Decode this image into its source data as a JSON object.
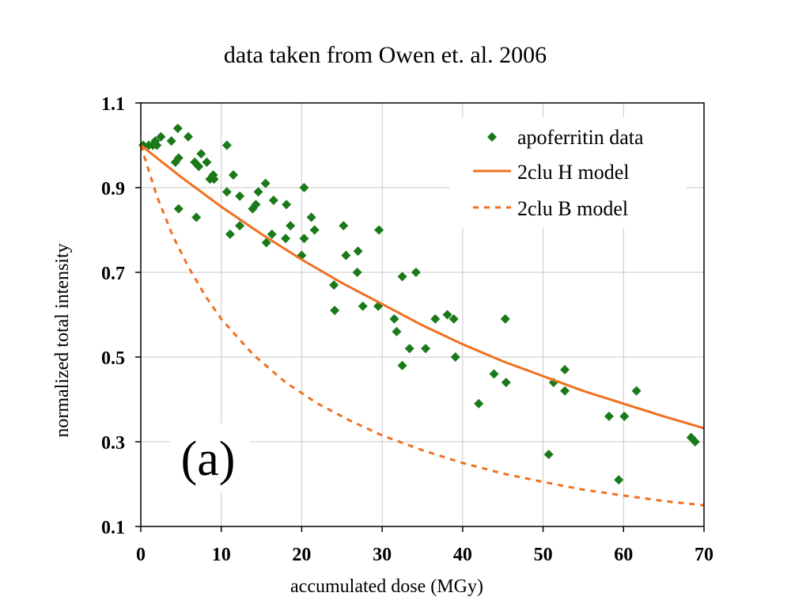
{
  "chart_data": {
    "type": "scatter",
    "title": "data taken from Owen et. al. 2006",
    "xlabel": "accumulated dose (MGy)",
    "ylabel": "normalized total intensity",
    "xlim": [
      0,
      70
    ],
    "ylim": [
      0.1,
      1.1
    ],
    "xticks": [
      0,
      10,
      20,
      30,
      40,
      50,
      60,
      70
    ],
    "yticks": [
      0.1,
      0.3,
      0.5,
      0.7,
      0.9,
      1.1
    ],
    "xtick_labels": [
      "0",
      "10",
      "20",
      "30",
      "40",
      "50",
      "60",
      "70"
    ],
    "ytick_labels": [
      "0.1",
      "0.3",
      "0.5",
      "0.7",
      "0.9",
      "1.1"
    ],
    "grid": true,
    "legend_position": "top-right",
    "annotation": "(a)",
    "colors": {
      "data": "#1a7a1a",
      "model": "#f07020"
    },
    "series": [
      {
        "name": "apoferritin data",
        "kind": "points",
        "marker": "diamond",
        "points": [
          [
            0.3,
            1.0
          ],
          [
            1.0,
            1.0
          ],
          [
            1.5,
            1.0
          ],
          [
            1.8,
            1.01
          ],
          [
            2.0,
            1.0
          ],
          [
            2.5,
            1.02
          ],
          [
            3.8,
            1.01
          ],
          [
            4.3,
            0.96
          ],
          [
            4.6,
            1.04
          ],
          [
            4.7,
            0.97
          ],
          [
            4.7,
            0.85
          ],
          [
            5.9,
            1.02
          ],
          [
            6.7,
            0.96
          ],
          [
            6.9,
            0.83
          ],
          [
            7.2,
            0.95
          ],
          [
            7.5,
            0.98
          ],
          [
            8.2,
            0.96
          ],
          [
            8.6,
            0.92
          ],
          [
            9.0,
            0.93
          ],
          [
            9.1,
            0.92
          ],
          [
            10.7,
            1.0
          ],
          [
            10.7,
            0.89
          ],
          [
            11.1,
            0.79
          ],
          [
            11.5,
            0.93
          ],
          [
            12.3,
            0.88
          ],
          [
            12.3,
            0.81
          ],
          [
            13.9,
            0.85
          ],
          [
            14.3,
            0.86
          ],
          [
            14.6,
            0.89
          ],
          [
            15.5,
            0.91
          ],
          [
            15.6,
            0.77
          ],
          [
            16.3,
            0.79
          ],
          [
            16.5,
            0.87
          ],
          [
            18.0,
            0.78
          ],
          [
            18.1,
            0.86
          ],
          [
            18.6,
            0.81
          ],
          [
            20.0,
            0.74
          ],
          [
            20.3,
            0.9
          ],
          [
            20.3,
            0.78
          ],
          [
            21.2,
            0.83
          ],
          [
            21.6,
            0.8
          ],
          [
            24.0,
            0.67
          ],
          [
            24.1,
            0.61
          ],
          [
            25.2,
            0.81
          ],
          [
            25.5,
            0.74
          ],
          [
            26.9,
            0.7
          ],
          [
            27.0,
            0.75
          ],
          [
            27.6,
            0.62
          ],
          [
            29.5,
            0.62
          ],
          [
            29.6,
            0.8
          ],
          [
            31.5,
            0.59
          ],
          [
            31.8,
            0.56
          ],
          [
            32.5,
            0.48
          ],
          [
            32.5,
            0.69
          ],
          [
            33.4,
            0.52
          ],
          [
            34.2,
            0.7
          ],
          [
            35.4,
            0.52
          ],
          [
            36.6,
            0.59
          ],
          [
            38.1,
            0.6
          ],
          [
            38.9,
            0.59
          ],
          [
            39.1,
            0.5
          ],
          [
            42.0,
            0.39
          ],
          [
            43.9,
            0.46
          ],
          [
            45.3,
            0.59
          ],
          [
            45.4,
            0.44
          ],
          [
            50.7,
            0.27
          ],
          [
            51.3,
            0.44
          ],
          [
            52.7,
            0.47
          ],
          [
            52.7,
            0.42
          ],
          [
            58.2,
            0.36
          ],
          [
            59.4,
            0.21
          ],
          [
            60.1,
            0.36
          ],
          [
            61.6,
            0.42
          ],
          [
            68.4,
            0.31
          ],
          [
            68.9,
            0.3
          ]
        ]
      },
      {
        "name": "2clu H model",
        "kind": "line",
        "dash": "solid",
        "points": [
          [
            0,
            1.0
          ],
          [
            5,
            0.925
          ],
          [
            10,
            0.855
          ],
          [
            15,
            0.79
          ],
          [
            20,
            0.73
          ],
          [
            25,
            0.675
          ],
          [
            30,
            0.625
          ],
          [
            35,
            0.575
          ],
          [
            40,
            0.53
          ],
          [
            45,
            0.49
          ],
          [
            50,
            0.455
          ],
          [
            55,
            0.42
          ],
          [
            60,
            0.39
          ],
          [
            65,
            0.36
          ],
          [
            70,
            0.332
          ]
        ]
      },
      {
        "name": "2clu B model",
        "kind": "line",
        "dash": "dashed",
        "points": [
          [
            0,
            1.0
          ],
          [
            2,
            0.88
          ],
          [
            4,
            0.785
          ],
          [
            6,
            0.71
          ],
          [
            8,
            0.645
          ],
          [
            10,
            0.59
          ],
          [
            14,
            0.505
          ],
          [
            18,
            0.44
          ],
          [
            22,
            0.39
          ],
          [
            26,
            0.35
          ],
          [
            30,
            0.315
          ],
          [
            35,
            0.28
          ],
          [
            40,
            0.25
          ],
          [
            45,
            0.225
          ],
          [
            50,
            0.205
          ],
          [
            55,
            0.187
          ],
          [
            60,
            0.173
          ],
          [
            65,
            0.16
          ],
          [
            70,
            0.15
          ]
        ]
      }
    ]
  }
}
